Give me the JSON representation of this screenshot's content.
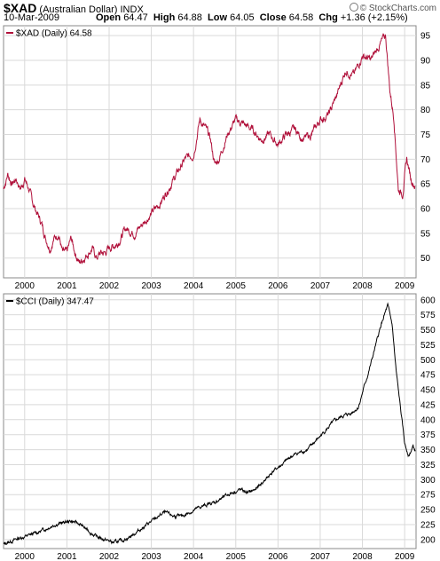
{
  "header": {
    "symbol": "$XAD",
    "description": "(Australian Dollar) INDX",
    "date": "10-Mar-2009",
    "open_label": "Open",
    "open_value": "64.47",
    "high_label": "High",
    "high_value": "64.88",
    "low_label": "Low",
    "low_value": "64.05",
    "close_label": "Close",
    "close_value": "64.58",
    "chg_label": "Chg",
    "chg_value": "+1.36 (+2.15%)",
    "brand": "© StockCharts.com"
  },
  "colors": {
    "xad_line": "#b0103a",
    "cci_line": "#000000",
    "grid": "#d9d9d9"
  },
  "chart_data": [
    {
      "type": "line",
      "legend": "$XAD (Daily) 64.58",
      "x_ticks": [
        "2000",
        "2001",
        "2002",
        "2003",
        "2004",
        "2005",
        "2006",
        "2007",
        "2008",
        "2009"
      ],
      "y_ticks": [
        50,
        55,
        60,
        65,
        70,
        75,
        80,
        85,
        90,
        95
      ],
      "ylim": [
        46,
        97
      ],
      "grid": true,
      "series": [
        {
          "x": [
            1999.5,
            1999.6,
            1999.7,
            1999.8,
            1999.9,
            2000.0,
            2000.1,
            2000.2,
            2000.3,
            2000.4,
            2000.5,
            2000.6,
            2000.7,
            2000.8,
            2000.9,
            2001.0,
            2001.1,
            2001.2,
            2001.3,
            2001.4,
            2001.5,
            2001.6,
            2001.7,
            2001.8,
            2001.9,
            2002.0,
            2002.2,
            2002.4,
            2002.6,
            2002.8,
            2003.0,
            2003.2,
            2003.4,
            2003.6,
            2003.8,
            2004.0,
            2004.15,
            2004.3,
            2004.4,
            2004.5,
            2004.6,
            2004.8,
            2005.0,
            2005.2,
            2005.4,
            2005.6,
            2005.8,
            2006.0,
            2006.2,
            2006.4,
            2006.6,
            2006.8,
            2007.0,
            2007.2,
            2007.4,
            2007.6,
            2007.8,
            2008.0,
            2008.2,
            2008.4,
            2008.55,
            2008.65,
            2008.75,
            2008.85,
            2008.95,
            2009.05,
            2009.15,
            2009.25
          ],
          "values": [
            64,
            67,
            65,
            66,
            64,
            66,
            64,
            61,
            59,
            57,
            54,
            52,
            54,
            55,
            51,
            51,
            54,
            51,
            49,
            50,
            51,
            52,
            50,
            51,
            51,
            52,
            53,
            56,
            55,
            57,
            59,
            61,
            64,
            67,
            70,
            71,
            78,
            76,
            74,
            69,
            70,
            75,
            78,
            77,
            76,
            74,
            75,
            73,
            75,
            76,
            74,
            75,
            78,
            79,
            83,
            88,
            87,
            91,
            90,
            93,
            95,
            84,
            78,
            64,
            63,
            70,
            66,
            64.58
          ]
        }
      ]
    },
    {
      "type": "line",
      "legend": "$CCI (Daily) 347.47",
      "x_ticks": [
        "2000",
        "2001",
        "2002",
        "2003",
        "2004",
        "2005",
        "2006",
        "2007",
        "2008",
        "2009"
      ],
      "y_ticks": [
        200,
        225,
        250,
        275,
        300,
        325,
        350,
        375,
        400,
        425,
        450,
        475,
        500,
        525,
        550,
        575,
        600
      ],
      "ylim": [
        185,
        610
      ],
      "grid": true,
      "series": [
        {
          "x": [
            1999.5,
            1999.7,
            1999.9,
            2000.1,
            2000.3,
            2000.5,
            2000.7,
            2000.9,
            2001.1,
            2001.3,
            2001.5,
            2001.7,
            2001.9,
            2002.1,
            2002.3,
            2002.5,
            2002.7,
            2002.9,
            2003.1,
            2003.3,
            2003.5,
            2003.7,
            2003.9,
            2004.1,
            2004.3,
            2004.5,
            2004.7,
            2004.9,
            2005.1,
            2005.3,
            2005.5,
            2005.7,
            2005.9,
            2006.1,
            2006.3,
            2006.5,
            2006.7,
            2006.9,
            2007.1,
            2007.3,
            2007.5,
            2007.7,
            2007.9,
            2008.0,
            2008.15,
            2008.3,
            2008.45,
            2008.55,
            2008.6,
            2008.7,
            2008.8,
            2008.9,
            2009.0,
            2009.1,
            2009.2,
            2009.25
          ],
          "values": [
            192,
            198,
            203,
            207,
            212,
            218,
            225,
            228,
            231,
            226,
            215,
            205,
            200,
            195,
            198,
            205,
            215,
            225,
            235,
            245,
            240,
            238,
            245,
            252,
            258,
            262,
            270,
            278,
            283,
            278,
            285,
            300,
            315,
            325,
            338,
            345,
            350,
            365,
            380,
            395,
            405,
            410,
            420,
            445,
            480,
            520,
            560,
            580,
            590,
            560,
            480,
            420,
            360,
            340,
            355,
            347.47
          ]
        }
      ]
    }
  ]
}
